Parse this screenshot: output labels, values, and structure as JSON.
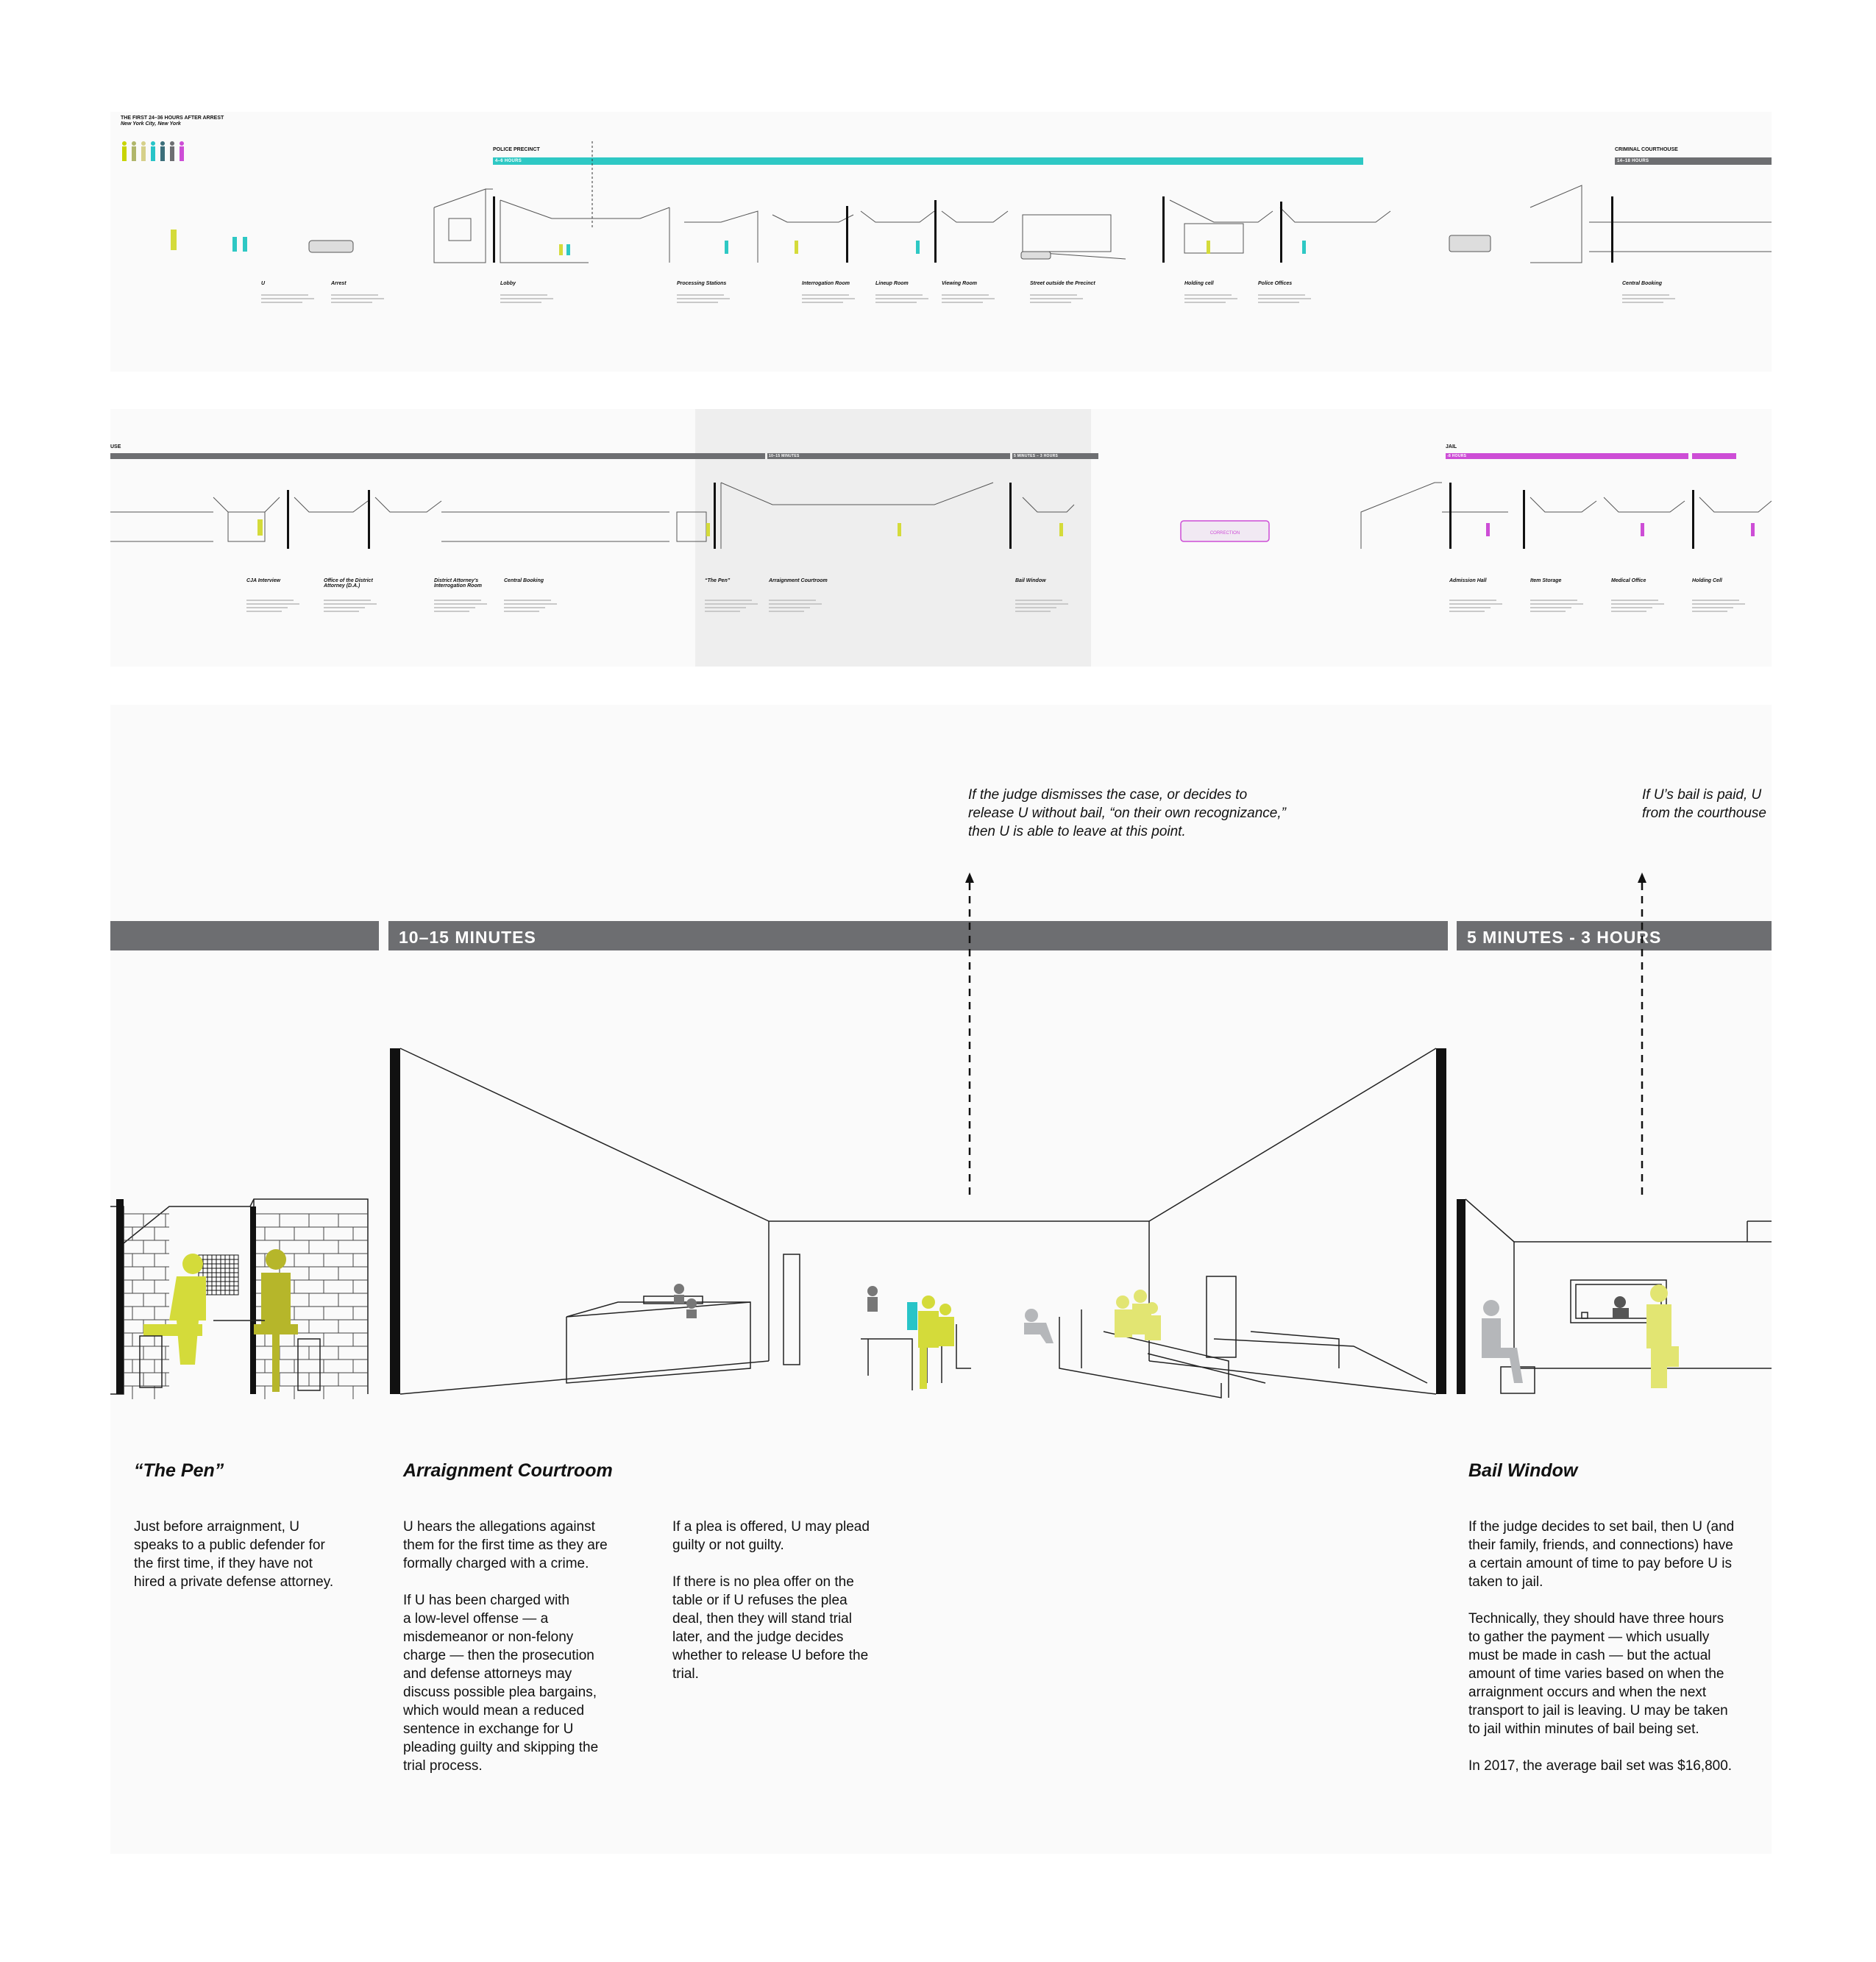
{
  "overview_top": {
    "title": "THE FIRST 24–36 HOURS AFTER ARREST",
    "subtitle": "New York City, New York",
    "legend_colors": [
      "#c8d400",
      "#b0b66b",
      "#d6d08a",
      "#28c4c8",
      "#3b6e7a",
      "#6d6e71",
      "#cd4dd6"
    ],
    "police_precinct": {
      "label": "POLICE PRECINCT",
      "duration": "4–6 HOURS",
      "color": "#2ec8c4"
    },
    "criminal_courthouse": {
      "label": "CRIMINAL COURTHOUSE",
      "duration": "14–18 HOURS",
      "color": "#6d6e71"
    },
    "stations": [
      {
        "name": "U"
      },
      {
        "name": "Arrest"
      },
      {
        "name": "Lobby"
      },
      {
        "name": "Processing Stations"
      },
      {
        "name": "Interrogation Room"
      },
      {
        "name": "Lineup Room"
      },
      {
        "name": "Viewing Room"
      },
      {
        "name": "Street outside the Precinct"
      },
      {
        "name": "Holding cell"
      },
      {
        "name": "Police Offices"
      },
      {
        "name": "Central Booking"
      }
    ]
  },
  "overview_middle": {
    "use_label": "USE",
    "jail": {
      "label": "JAIL",
      "duration": "-8 HOURS",
      "color": "#cd4dd6"
    },
    "bus_label": "CORRECTION",
    "durations": [
      "10–15 MINUTES",
      "5 MINUTES – 3 HOURS"
    ],
    "stations": [
      {
        "name": "CJA Interview"
      },
      {
        "name": "Office of the District Attorney (D.A.)"
      },
      {
        "name": "District Attorney's Interrogation Room"
      },
      {
        "name": "Central Booking"
      },
      {
        "name": "“The Pen”"
      },
      {
        "name": "Arraignment Courtroom"
      },
      {
        "name": "Bail Window"
      },
      {
        "name": "Admission Hall"
      },
      {
        "name": "Item Storage"
      },
      {
        "name": "Medical Office"
      },
      {
        "name": "Holding Cell"
      }
    ]
  },
  "detail": {
    "bar1": "10–15 MINUTES",
    "bar2": "5 MINUTES - 3 HOURS",
    "note1": "If the judge dismisses the case, or decides to\nrelease U without bail, “on their own recognizance,”\nthen U is able to leave at this point.",
    "note2": "If U’s bail is paid, U\nfrom the courthouse",
    "pen": {
      "title": "“The Pen”",
      "text": "Just before arraignment, U\nspeaks to a public defender for\nthe first time, if they have not\nhired a private defense attorney."
    },
    "courtroom": {
      "title": "Arraignment Courtroom",
      "text1": "U hears the allegations against\nthem for the first time as they are\nformally charged with a crime.\n\nIf U has been charged with\na low-level offense — a\nmisdemeanor or non-felony\ncharge — then the prosecution\nand defense attorneys may\ndiscuss possible plea bargains,\nwhich would mean a reduced\nsentence in exchange for U\npleading guilty and skipping the\ntrial process.",
      "text2": "If a plea is offered, U may plead\nguilty or not guilty.\n\nIf there is no plea offer on the\ntable or if U refuses the plea\ndeal, then they will stand trial\nlater, and the judge decides\nwhether to release U before the\ntrial."
    },
    "bail": {
      "title": "Bail Window",
      "text": "If the judge decides to set bail, then U (and\ntheir family, friends, and connections) have\na certain amount of time to pay before U is\ntaken to jail.\n\nTechnically, they should have three hours\nto gather the payment — which usually\nmust be made in cash — but the actual\namount of time varies based on when the\narraignment occurs and when the next\ntransport to jail is leaving. U may be taken\nto jail within minutes of bail being set.\n\nIn 2017, the average bail set was $16,800."
    },
    "colors": {
      "bar": "#6d6e71",
      "defendant": "#d4db3a",
      "lawyer": "#b6b62a",
      "gray_figure": "#a7a9ac",
      "yellow_light": "#e2e572",
      "teal": "#28c4c8"
    }
  }
}
